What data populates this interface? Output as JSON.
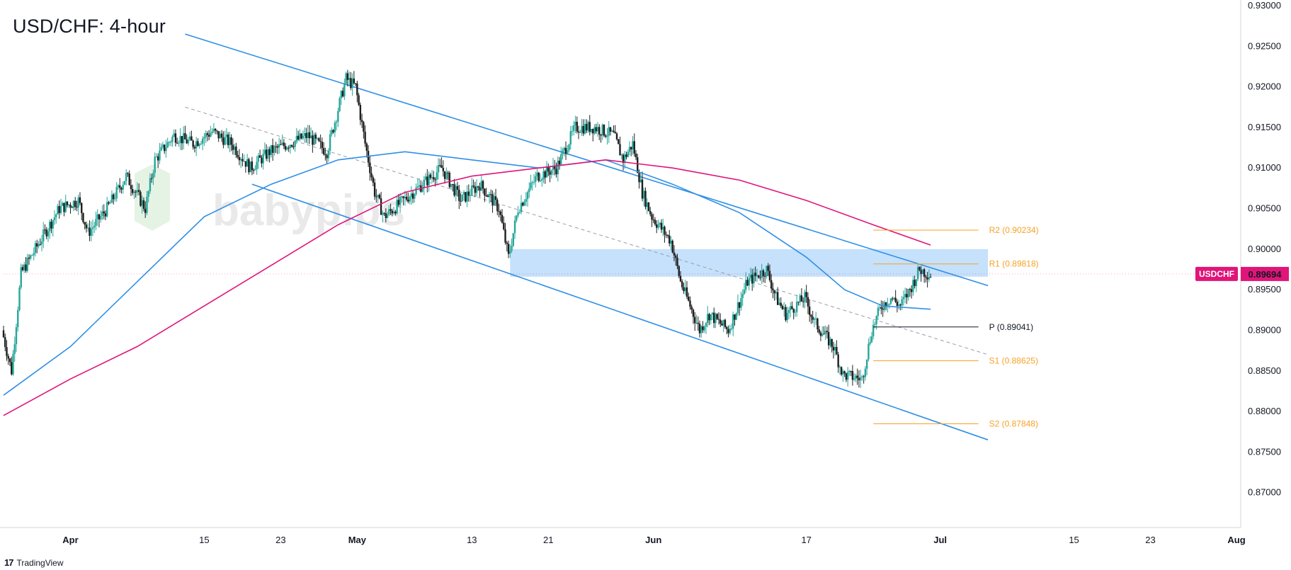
{
  "chart_data": {
    "type": "candlestick",
    "title": "USD/CHF: 4-hour",
    "symbol": "USDCHF",
    "last_price": 0.89694,
    "last_price_label": "0.89694",
    "y_axis": {
      "ylim": [
        0.865,
        0.93
      ],
      "ticks": [
        {
          "value": 0.93,
          "label": "0.93000"
        },
        {
          "value": 0.925,
          "label": "0.92500"
        },
        {
          "value": 0.92,
          "label": "0.92000"
        },
        {
          "value": 0.915,
          "label": "0.91500"
        },
        {
          "value": 0.91,
          "label": "0.91000"
        },
        {
          "value": 0.905,
          "label": "0.90500"
        },
        {
          "value": 0.9,
          "label": "0.90000"
        },
        {
          "value": 0.895,
          "label": "0.89500"
        },
        {
          "value": 0.89,
          "label": "0.89000"
        },
        {
          "value": 0.885,
          "label": "0.88500"
        },
        {
          "value": 0.88,
          "label": "0.88000"
        },
        {
          "value": 0.875,
          "label": "0.87500"
        },
        {
          "value": 0.87,
          "label": "0.87000"
        }
      ]
    },
    "x_axis": {
      "start": "2024-03-25",
      "end": "2024-08-01",
      "ticks": [
        {
          "date": "2024-04-01",
          "label": "Apr",
          "bold": true
        },
        {
          "date": "2024-04-15",
          "label": "15",
          "bold": false
        },
        {
          "date": "2024-04-23",
          "label": "23",
          "bold": false
        },
        {
          "date": "2024-05-01",
          "label": "May",
          "bold": true
        },
        {
          "date": "2024-05-13",
          "label": "13",
          "bold": false
        },
        {
          "date": "2024-05-21",
          "label": "21",
          "bold": false
        },
        {
          "date": "2024-06-01",
          "label": "Jun",
          "bold": true
        },
        {
          "date": "2024-06-17",
          "label": "17",
          "bold": false
        },
        {
          "date": "2024-07-01",
          "label": "Jul",
          "bold": true
        },
        {
          "date": "2024-07-15",
          "label": "15",
          "bold": false
        },
        {
          "date": "2024-07-23",
          "label": "23",
          "bold": false
        },
        {
          "date": "2024-08-01",
          "label": "Aug",
          "bold": true
        }
      ]
    },
    "price_path": [
      [
        "2024-03-25",
        0.89
      ],
      [
        "2024-03-26",
        0.885
      ],
      [
        "2024-03-27",
        0.897
      ],
      [
        "2024-03-28",
        0.899
      ],
      [
        "2024-03-29",
        0.901
      ],
      [
        "2024-03-31",
        0.905
      ],
      [
        "2024-04-02",
        0.906
      ],
      [
        "2024-04-03",
        0.902
      ],
      [
        "2024-04-05",
        0.905
      ],
      [
        "2024-04-07",
        0.909
      ],
      [
        "2024-04-09",
        0.905
      ],
      [
        "2024-04-10",
        0.911
      ],
      [
        "2024-04-12",
        0.914
      ],
      [
        "2024-04-14",
        0.913
      ],
      [
        "2024-04-16",
        0.9145
      ],
      [
        "2024-04-18",
        0.913
      ],
      [
        "2024-04-20",
        0.91
      ],
      [
        "2024-04-22",
        0.912
      ],
      [
        "2024-04-24",
        0.913
      ],
      [
        "2024-04-26",
        0.914
      ],
      [
        "2024-04-28",
        0.912
      ],
      [
        "2024-04-30",
        0.921
      ],
      [
        "2024-05-01",
        0.92
      ],
      [
        "2024-05-02",
        0.913
      ],
      [
        "2024-05-03",
        0.907
      ],
      [
        "2024-05-04",
        0.904
      ],
      [
        "2024-05-06",
        0.906
      ],
      [
        "2024-05-08",
        0.908
      ],
      [
        "2024-05-10",
        0.91
      ],
      [
        "2024-05-12",
        0.906
      ],
      [
        "2024-05-14",
        0.908
      ],
      [
        "2024-05-16",
        0.905
      ],
      [
        "2024-05-17",
        0.899
      ],
      [
        "2024-05-18",
        0.905
      ],
      [
        "2024-05-20",
        0.909
      ],
      [
        "2024-05-22",
        0.91
      ],
      [
        "2024-05-24",
        0.915
      ],
      [
        "2024-05-26",
        0.915
      ],
      [
        "2024-05-28",
        0.914
      ],
      [
        "2024-05-29",
        0.911
      ],
      [
        "2024-05-30",
        0.913
      ],
      [
        "2024-05-31",
        0.907
      ],
      [
        "2024-06-01",
        0.904
      ],
      [
        "2024-06-03",
        0.901
      ],
      [
        "2024-06-04",
        0.896
      ],
      [
        "2024-06-05",
        0.893
      ],
      [
        "2024-06-06",
        0.89
      ],
      [
        "2024-06-07",
        0.892
      ],
      [
        "2024-06-09",
        0.89
      ],
      [
        "2024-06-11",
        0.896
      ],
      [
        "2024-06-13",
        0.8975
      ],
      [
        "2024-06-14",
        0.894
      ],
      [
        "2024-06-15",
        0.892
      ],
      [
        "2024-06-17",
        0.894
      ],
      [
        "2024-06-18",
        0.891
      ],
      [
        "2024-06-20",
        0.888
      ],
      [
        "2024-06-21",
        0.8845
      ],
      [
        "2024-06-23",
        0.884
      ],
      [
        "2024-06-24",
        0.89
      ],
      [
        "2024-06-25",
        0.893
      ],
      [
        "2024-06-26",
        0.894
      ],
      [
        "2024-06-27",
        0.893
      ],
      [
        "2024-06-28",
        0.895
      ],
      [
        "2024-06-29",
        0.8975
      ],
      [
        "2024-06-30",
        0.8969
      ]
    ],
    "moving_averages": [
      {
        "color": "#2f8fe6",
        "points": [
          [
            "2024-03-25",
            0.882
          ],
          [
            "2024-04-01",
            0.888
          ],
          [
            "2024-04-08",
            0.896
          ],
          [
            "2024-04-15",
            0.904
          ],
          [
            "2024-04-22",
            0.908
          ],
          [
            "2024-04-29",
            0.911
          ],
          [
            "2024-05-06",
            0.912
          ],
          [
            "2024-05-13",
            0.911
          ],
          [
            "2024-05-20",
            0.91
          ],
          [
            "2024-05-27",
            0.911
          ],
          [
            "2024-06-03",
            0.908
          ],
          [
            "2024-06-10",
            0.9045
          ],
          [
            "2024-06-17",
            0.899
          ],
          [
            "2024-06-21",
            0.895
          ],
          [
            "2024-06-25",
            0.893
          ],
          [
            "2024-06-30",
            0.8926
          ]
        ]
      },
      {
        "color": "#e0157a",
        "points": [
          [
            "2024-03-25",
            0.8795
          ],
          [
            "2024-04-01",
            0.884
          ],
          [
            "2024-04-08",
            0.888
          ],
          [
            "2024-04-15",
            0.893
          ],
          [
            "2024-04-22",
            0.898
          ],
          [
            "2024-04-29",
            0.903
          ],
          [
            "2024-05-06",
            0.907
          ],
          [
            "2024-05-13",
            0.909
          ],
          [
            "2024-05-20",
            0.91
          ],
          [
            "2024-05-27",
            0.911
          ],
          [
            "2024-06-03",
            0.91
          ],
          [
            "2024-06-10",
            0.9085
          ],
          [
            "2024-06-17",
            0.906
          ],
          [
            "2024-06-24",
            0.903
          ],
          [
            "2024-06-30",
            0.9005
          ]
        ]
      }
    ],
    "trend_lines": [
      {
        "kind": "upper",
        "from": [
          "2024-04-13",
          0.9265
        ],
        "to": [
          "2024-07-06",
          0.8955
        ]
      },
      {
        "kind": "lower",
        "from": [
          "2024-04-20",
          0.908
        ],
        "to": [
          "2024-07-06",
          0.8765
        ]
      },
      {
        "kind": "mid",
        "from": [
          "2024-04-13",
          0.9175
        ],
        "to": [
          "2024-07-06",
          0.887
        ]
      }
    ],
    "resistance_zone": {
      "from": "2024-05-17",
      "to": "2024-07-06",
      "low": 0.8966,
      "high": 0.9
    },
    "pivot_levels": [
      {
        "name": "R2",
        "label": "R2 (0.90234)",
        "value": 0.90234,
        "color": "#f7a128"
      },
      {
        "name": "R1",
        "label": "R1 (0.89818)",
        "value": 0.89818,
        "color": "#f7a128"
      },
      {
        "name": "P",
        "label": "P (0.89041)",
        "value": 0.89041,
        "color": "#131722"
      },
      {
        "name": "S1",
        "label": "S1 (0.88625)",
        "value": 0.88625,
        "color": "#f7a128"
      },
      {
        "name": "S2",
        "label": "S2 (0.87848)",
        "value": 0.87848,
        "color": "#f7a128"
      }
    ],
    "pivot_range": {
      "from": "2024-06-24",
      "to": "2024-07-05"
    },
    "colors": {
      "up": "#26a69a",
      "down": "#1e1e1e",
      "price_tag": "#e0157a",
      "trend": "#2f8fe6",
      "zone": "#bbdcfb"
    }
  },
  "watermark": "babypips",
  "brand": {
    "logo": "17",
    "name": "TradingView"
  }
}
